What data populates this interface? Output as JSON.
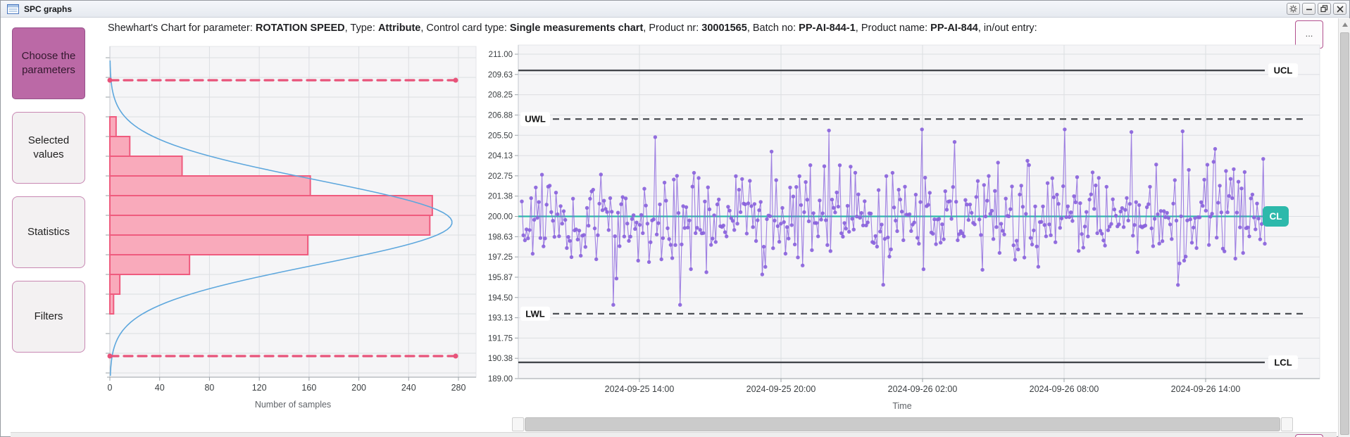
{
  "window": {
    "title": "SPC graphs",
    "controls": [
      {
        "name": "settings"
      },
      {
        "name": "minimize"
      },
      {
        "name": "restore"
      },
      {
        "name": "close"
      }
    ]
  },
  "header": {
    "parts": [
      {
        "text": "Shewhart's Chart for parameter: ",
        "bold": false
      },
      {
        "text": "ROTATION SPEED",
        "bold": true
      },
      {
        "text": ", Type: ",
        "bold": false
      },
      {
        "text": "Attribute",
        "bold": true
      },
      {
        "text": ", Control card type: ",
        "bold": false
      },
      {
        "text": "Single measurements chart",
        "bold": true
      },
      {
        "text": ", Product nr: ",
        "bold": false
      },
      {
        "text": "30001565",
        "bold": true
      },
      {
        "text": ", Batch no: ",
        "bold": false
      },
      {
        "text": "PP-AI-844-1",
        "bold": true
      },
      {
        "text": ", Product name: ",
        "bold": false
      },
      {
        "text": "PP-AI-844",
        "bold": true
      },
      {
        "text": ", in/out entry: ",
        "bold": false
      }
    ],
    "more_button_label": "..."
  },
  "sidebar": {
    "buttons": [
      {
        "label": "Choose the parameters",
        "active": true
      },
      {
        "label": "Selected values",
        "active": false
      },
      {
        "label": "Statistics",
        "active": false
      },
      {
        "label": "Filters",
        "active": false
      }
    ],
    "active_color": "#bb69a6",
    "inactive_border_color": "#c887b2"
  },
  "chart_data": [
    {
      "id": "distribution-histogram",
      "type": "bar",
      "orientation": "horizontal",
      "values": [
        5,
        16,
        58,
        161,
        259,
        257,
        159,
        64,
        8,
        3
      ],
      "xlabel": "Number of samples",
      "x_ticks": [
        0,
        40,
        80,
        120,
        160,
        200,
        240,
        280
      ],
      "xlim": [
        0,
        293
      ],
      "grid": true,
      "overlay_curve": "normal distribution fit",
      "limit_lines": {
        "count": 2,
        "style": "dashed",
        "color": "#e8537a"
      },
      "bar_fill": "#f9aabb",
      "bar_stroke": "#ef5b7e",
      "curve_color": "#5da7dd"
    },
    {
      "id": "control-chart",
      "type": "line-scatter",
      "xlabel": "Time",
      "y_ticks": [
        "211.00",
        "209.63",
        "208.25",
        "206.88",
        "205.50",
        "204.13",
        "202.75",
        "201.38",
        "200.00",
        "198.63",
        "197.25",
        "195.87",
        "194.50",
        "193.13",
        "191.75",
        "190.38",
        "189.00"
      ],
      "ylim": [
        189.0,
        211.0
      ],
      "x_ticks": [
        "2024-09-25 14:00",
        "2024-09-25 20:00",
        "2024-09-26 02:00",
        "2024-09-26 08:00",
        "2024-09-26 14:00"
      ],
      "grid": true,
      "legend": false,
      "center_line": {
        "label": "CL",
        "value": 200.0,
        "color": "#2db9ab"
      },
      "limits": [
        {
          "label": "UCL",
          "value": 209.9,
          "style": "solid",
          "label_side": "right"
        },
        {
          "label": "UWL",
          "value": 206.6,
          "style": "dashed",
          "label_side": "left"
        },
        {
          "label": "LWL",
          "value": 193.4,
          "style": "dashed",
          "label_side": "left"
        },
        {
          "label": "LCL",
          "value": 190.1,
          "style": "solid",
          "label_side": "right"
        }
      ],
      "limit_line_color": "#43464b",
      "series": [
        {
          "name": "single measurements",
          "color": "#8a63dc",
          "n_points": 480,
          "mean": 200.0,
          "stdev": 1.5,
          "spike_prob": 0.12,
          "spike_scale": 2.1,
          "observed_min": 194.0,
          "observed_max": 205.9,
          "seed": 1337
        }
      ]
    }
  ],
  "scrollbars": {
    "horizontal": {
      "present": true
    },
    "vertical": {
      "present": true
    }
  }
}
